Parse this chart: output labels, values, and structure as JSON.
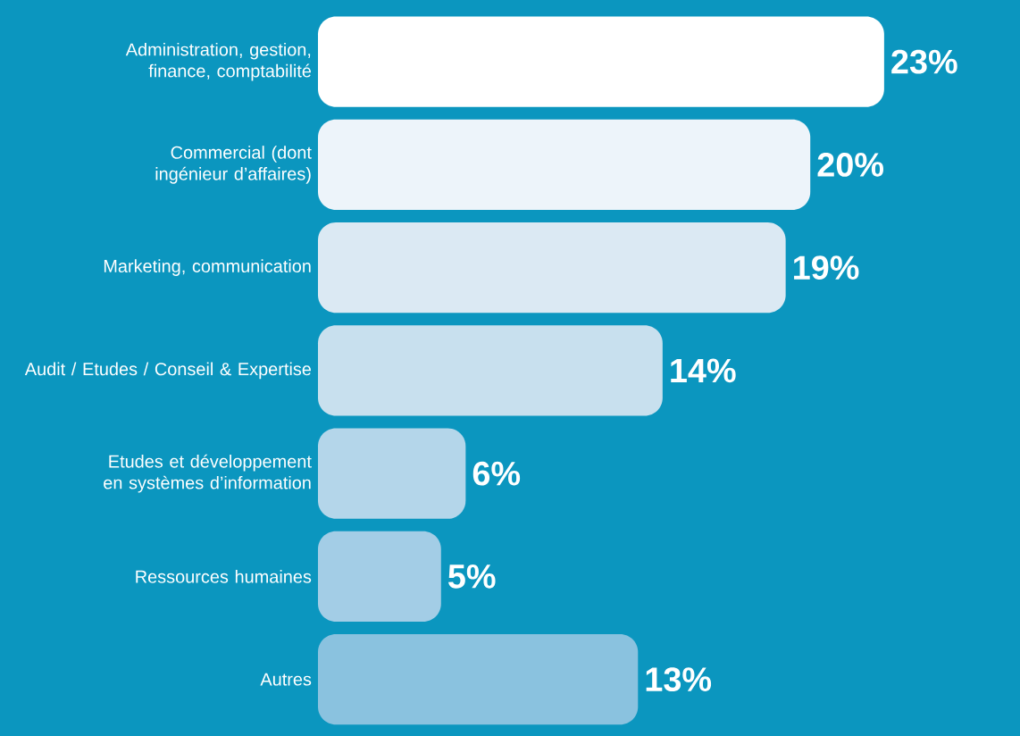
{
  "chart_data": {
    "type": "bar",
    "orientation": "horizontal",
    "categories": [
      "Administration, gestion, finance, comptabilité",
      "Commercial (dont ingénieur d’affaires)",
      "Marketing, communication",
      "Audit / Etudes / Conseil & Expertise",
      "Etudes et développement en systèmes d’information",
      "Ressources humaines",
      "Autres"
    ],
    "values": [
      23,
      20,
      19,
      14,
      6,
      5,
      13
    ],
    "value_labels": [
      "23%",
      "20%",
      "19%",
      "14%",
      "6%",
      "5%",
      "13%"
    ],
    "colors": [
      "#ffffff",
      "#edf4fa",
      "#dbe9f3",
      "#c8e0ee",
      "#b4d6ea",
      "#a3cde6",
      "#8ac2df"
    ]
  }
}
